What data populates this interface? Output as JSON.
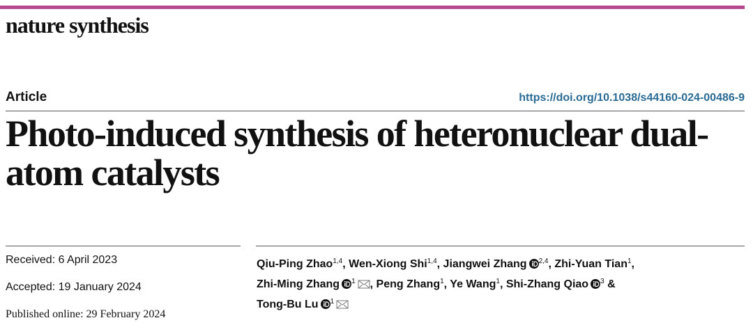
{
  "header": {
    "journal": "nature synthesis",
    "article_type": "Article",
    "doi": "https://doi.org/10.1038/s44160-024-00486-9"
  },
  "title": "Photo-induced synthesis of heteronuclear dual-atom catalysts",
  "dates": {
    "received": "Received: 6 April 2023",
    "accepted": "Accepted: 19 January 2024",
    "published": "Published online: 29 February 2024"
  },
  "authors": [
    {
      "name": "Qiu-Ping Zhao",
      "affiliations": "1,4"
    },
    {
      "name": "Wen-Xiong Shi",
      "affiliations": "1,4"
    },
    {
      "name": "Jiangwei Zhang",
      "affiliations": "2,4"
    },
    {
      "name": "Zhi-Yuan Tian",
      "affiliations": "1"
    },
    {
      "name": "Zhi-Ming Zhang",
      "affiliations": "1"
    },
    {
      "name": "Peng Zhang",
      "affiliations": "1"
    },
    {
      "name": "Ye Wang",
      "affiliations": "1"
    },
    {
      "name": "Shi-Zhang Qiao",
      "affiliations": "3"
    },
    {
      "name": "Tong-Bu Lu",
      "affiliations": "1"
    }
  ],
  "author_separator": ",",
  "author_conjunction": "&"
}
